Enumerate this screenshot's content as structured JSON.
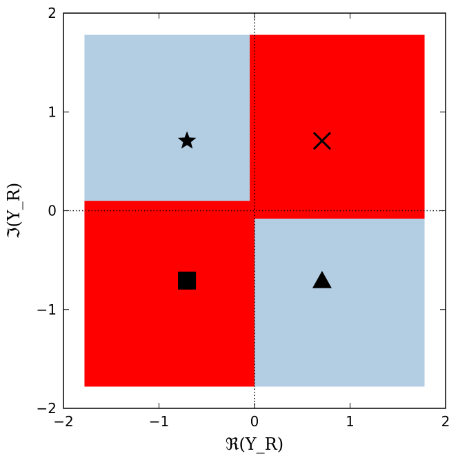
{
  "chart_data": {
    "type": "scatter",
    "title": "",
    "xlabel": "ℜ(Y_R)",
    "ylabel": "ℑ(Y_R)",
    "xlim": [
      -2,
      2
    ],
    "ylim": [
      -2,
      2
    ],
    "x_ticks": [
      -2,
      -1,
      0,
      1,
      2
    ],
    "y_ticks": [
      -2,
      -1,
      0,
      1,
      2
    ],
    "x_tick_labels": [
      "−2",
      "−1",
      "0",
      "1",
      "2"
    ],
    "y_tick_labels": [
      "−2",
      "−1",
      "0",
      "1",
      "2"
    ],
    "grid": false,
    "reference_lines": [
      {
        "axis": "x",
        "value": 0,
        "style": "dotted"
      },
      {
        "axis": "y",
        "value": 0,
        "style": "dotted"
      }
    ],
    "colors": {
      "red_region": "#ff0000",
      "blue_region": "#b3cde3",
      "marker": "#000000"
    },
    "background_region": {
      "x": [
        -1.78,
        1.78
      ],
      "y": [
        -1.78,
        1.78
      ],
      "color": "blue"
    },
    "red_regions": [
      {
        "x": [
          -0.05,
          1.78
        ],
        "y": [
          -0.08,
          1.78
        ]
      },
      {
        "x": [
          -1.78,
          0.0
        ],
        "y": [
          -1.78,
          0.1
        ]
      }
    ],
    "points": [
      {
        "x": -0.707,
        "y": 0.707,
        "marker": "star"
      },
      {
        "x": 0.707,
        "y": 0.707,
        "marker": "x"
      },
      {
        "x": -0.707,
        "y": -0.707,
        "marker": "square"
      },
      {
        "x": 0.707,
        "y": -0.707,
        "marker": "triangle"
      }
    ]
  }
}
